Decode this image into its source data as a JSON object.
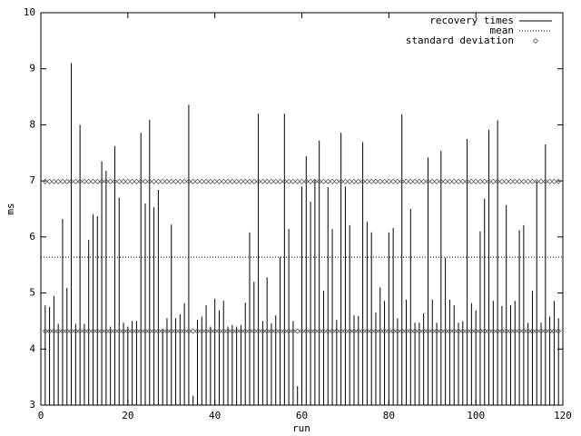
{
  "chart_data": {
    "type": "impulse",
    "xlabel": "run",
    "ylabel": "ms",
    "xlim": [
      0,
      120
    ],
    "ylim": [
      3,
      10
    ],
    "xticks": [
      0,
      20,
      40,
      60,
      80,
      100,
      120
    ],
    "yticks": [
      3,
      4,
      5,
      6,
      7,
      8,
      9,
      10
    ],
    "legend": "top-right",
    "series": [
      {
        "name": "recovery times",
        "color": "#000000",
        "style": "impulses",
        "x": [
          1,
          2,
          3,
          4,
          5,
          6,
          7,
          8,
          9,
          10,
          11,
          12,
          13,
          14,
          15,
          16,
          17,
          18,
          19,
          20,
          21,
          22,
          23,
          24,
          25,
          26,
          27,
          28,
          29,
          30,
          31,
          32,
          33,
          34,
          35,
          36,
          37,
          38,
          39,
          40,
          41,
          42,
          43,
          44,
          45,
          46,
          47,
          48,
          49,
          50,
          51,
          52,
          53,
          54,
          55,
          56,
          57,
          58,
          59,
          60,
          61,
          62,
          63,
          64,
          65,
          66,
          67,
          68,
          69,
          70,
          71,
          72,
          73,
          74,
          75,
          76,
          77,
          78,
          79,
          80,
          81,
          82,
          83,
          84,
          85,
          86,
          87,
          88,
          89,
          90,
          91,
          92,
          93,
          94,
          95,
          96,
          97,
          98,
          99,
          100,
          101,
          102,
          103,
          104,
          105,
          106,
          107,
          108,
          109,
          110,
          111,
          112,
          113,
          114,
          115,
          116,
          117,
          118,
          119
        ],
        "values": [
          4.78,
          4.75,
          4.95,
          4.45,
          6.32,
          5.09,
          9.1,
          4.45,
          8.0,
          4.45,
          5.95,
          6.4,
          6.37,
          7.35,
          7.18,
          4.4,
          7.62,
          6.7,
          4.47,
          4.4,
          4.5,
          4.5,
          7.86,
          6.6,
          8.09,
          6.53,
          6.84,
          4.35,
          4.55,
          6.22,
          4.55,
          4.62,
          4.82,
          8.36,
          3.17,
          4.52,
          4.58,
          4.78,
          4.4,
          4.9,
          4.69,
          4.86,
          4.4,
          4.43,
          4.4,
          4.43,
          4.83,
          6.08,
          5.2,
          8.2,
          4.5,
          5.28,
          4.46,
          4.6,
          5.64,
          8.2,
          6.14,
          4.5,
          3.34,
          6.9,
          7.44,
          6.63,
          7.02,
          7.72,
          5.04,
          6.89,
          6.14,
          4.52,
          7.86,
          6.9,
          6.21,
          4.6,
          4.59,
          7.69,
          6.27,
          6.08,
          4.65,
          5.1,
          4.86,
          6.08,
          6.16,
          4.55,
          8.19,
          4.88,
          6.5,
          4.47,
          4.47,
          4.64,
          7.42,
          4.88,
          4.47,
          7.54,
          5.63,
          4.88,
          4.78,
          4.47,
          4.5,
          7.75,
          4.82,
          4.69,
          6.1,
          6.68,
          7.91,
          4.86,
          8.08,
          4.77,
          6.57,
          4.78,
          4.86,
          6.12,
          6.21,
          4.47,
          5.04,
          7.0,
          4.47,
          7.65,
          4.58,
          4.86,
          4.55
        ]
      },
      {
        "name": "mean",
        "color": "#000000",
        "style": "dotted",
        "values": [
          5.64
        ]
      },
      {
        "name": "standard deviation",
        "color": "#555555",
        "style": "points",
        "values": [
          4.32,
          6.99
        ]
      }
    ]
  }
}
